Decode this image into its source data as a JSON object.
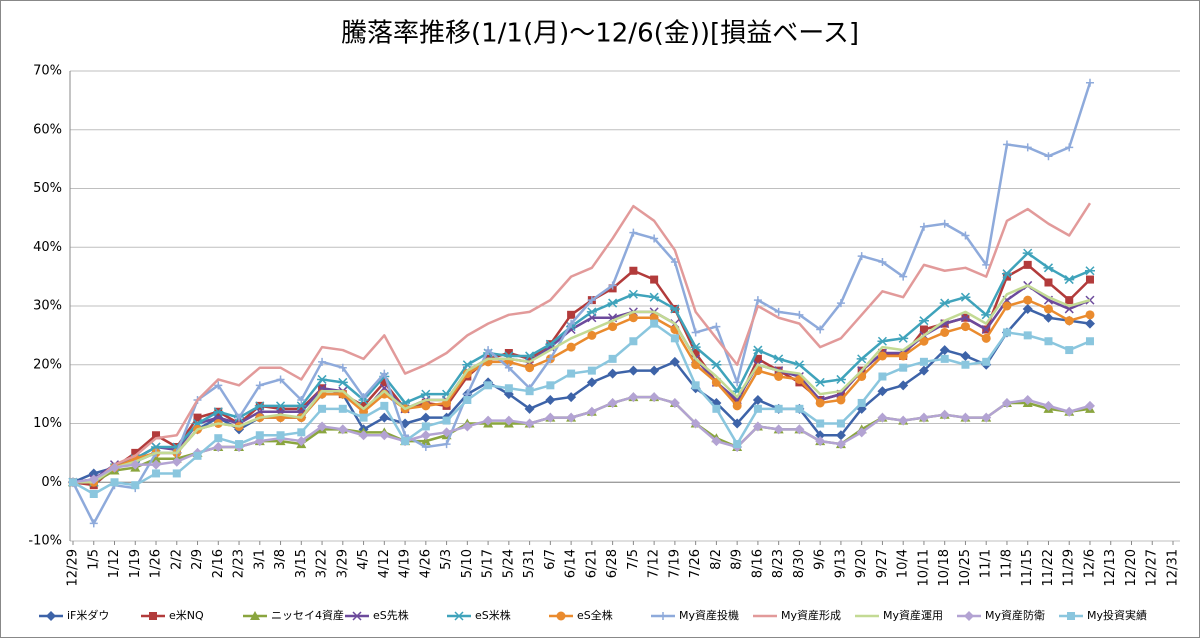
{
  "chart_data": {
    "type": "line",
    "title": "騰落率推移(1/1(月)～12/6(金))[損益ベース]",
    "categories": [
      "12/29",
      "1/5",
      "1/12",
      "1/19",
      "1/26",
      "2/2",
      "2/9",
      "2/16",
      "2/23",
      "3/1",
      "3/8",
      "3/15",
      "3/22",
      "3/29",
      "4/5",
      "4/12",
      "4/19",
      "4/26",
      "5/3",
      "5/10",
      "5/17",
      "5/24",
      "5/31",
      "6/7",
      "6/14",
      "6/21",
      "6/28",
      "7/5",
      "7/12",
      "7/19",
      "7/26",
      "8/2",
      "8/9",
      "8/16",
      "8/23",
      "8/30",
      "9/6",
      "9/13",
      "9/20",
      "9/27",
      "10/4",
      "10/11",
      "10/18",
      "10/25",
      "11/1",
      "11/8",
      "11/15",
      "11/22",
      "11/29",
      "12/6",
      "12/13",
      "12/20",
      "12/27",
      "12/31"
    ],
    "ylim": [
      -10,
      70
    ],
    "yticks": [
      {
        "value": -10,
        "label": "-10%"
      },
      {
        "value": 0,
        "label": "0%"
      },
      {
        "value": 10,
        "label": "10%"
      },
      {
        "value": 20,
        "label": "20%"
      },
      {
        "value": 30,
        "label": "30%"
      },
      {
        "value": 40,
        "label": "40%"
      },
      {
        "value": 50,
        "label": "50%"
      },
      {
        "value": 60,
        "label": "60%"
      },
      {
        "value": 70,
        "label": "70%"
      }
    ],
    "grid": true,
    "legend": "bottom",
    "series": [
      {
        "name": "iF米ダウ",
        "color": "#3d63a8",
        "marker": "diamond",
        "values": [
          0,
          1.5,
          2.5,
          3.5,
          5,
          5,
          9,
          11,
          9,
          11,
          11,
          11,
          15,
          15,
          9,
          11,
          10,
          11,
          11,
          15,
          17,
          15,
          12.5,
          14,
          14.5,
          17,
          18.5,
          19,
          19,
          20.5,
          16,
          13.5,
          10,
          14,
          12.5,
          12.5,
          8,
          8,
          12.5,
          15.5,
          16.5,
          19,
          22.5,
          21.5,
          20,
          25.5,
          29.5,
          28,
          27.5,
          27,
          null,
          null,
          null,
          null
        ]
      },
      {
        "name": "e米NQ",
        "color": "#b23b3b",
        "marker": "square",
        "values": [
          0,
          -0.5,
          2.5,
          5,
          8,
          6,
          11,
          12,
          10,
          13,
          12.5,
          12.5,
          16,
          15,
          13,
          17,
          12.5,
          13.5,
          13,
          18,
          21,
          22,
          21,
          23.5,
          28.5,
          31,
          33,
          36,
          34.5,
          29.5,
          22,
          17,
          13.5,
          21,
          19,
          17,
          14,
          15,
          19,
          22,
          21.5,
          26,
          27,
          28,
          26,
          35,
          37,
          34,
          31,
          34.5,
          null,
          null,
          null,
          null
        ]
      },
      {
        "name": "ニッセイ4資産",
        "color": "#8aa53e",
        "marker": "triangle",
        "values": [
          0,
          0,
          2,
          2.5,
          4,
          4,
          5,
          6,
          6,
          7,
          7,
          6.5,
          9,
          9,
          8.5,
          8.5,
          7,
          7,
          8,
          10,
          10,
          10,
          10,
          11,
          11,
          12,
          13.5,
          14.5,
          14.5,
          13.5,
          10,
          7.5,
          6,
          9.5,
          9,
          9,
          7,
          6.5,
          9,
          11,
          10.5,
          11,
          11.5,
          11,
          11,
          13.5,
          13.5,
          12.5,
          12,
          12.5,
          null,
          null,
          null,
          null
        ]
      },
      {
        "name": "eS先株",
        "color": "#6c4a9c",
        "marker": "x",
        "values": [
          0,
          0.5,
          3,
          4,
          6,
          5.5,
          10,
          11,
          10,
          12,
          12,
          12,
          16,
          15.5,
          12,
          16,
          12.5,
          14,
          14,
          19,
          21,
          21,
          20.5,
          23,
          26,
          28,
          28,
          29,
          29,
          27,
          21,
          17,
          14,
          20,
          19,
          18,
          14,
          15,
          19,
          22,
          22,
          25,
          27,
          28,
          26,
          31,
          33.5,
          31,
          29.5,
          31,
          null,
          null,
          null,
          null
        ]
      },
      {
        "name": "eS米株",
        "color": "#3fa3bb",
        "marker": "star",
        "values": [
          0,
          0,
          2.5,
          4,
          6,
          6,
          10,
          12,
          11,
          13,
          13,
          13,
          17.5,
          17,
          14,
          18,
          13.5,
          15,
          15,
          20,
          22,
          21.5,
          21.5,
          23.5,
          26.5,
          29,
          30.5,
          32,
          31.5,
          29.5,
          23,
          20,
          15.5,
          22.5,
          21,
          20,
          17,
          17.5,
          21,
          24,
          24.5,
          27.5,
          30.5,
          31.5,
          28.5,
          35.5,
          39,
          36.5,
          34.5,
          36,
          null,
          null,
          null,
          null
        ]
      },
      {
        "name": "eS全株",
        "color": "#ea8b2e",
        "marker": "circle",
        "values": [
          0,
          0,
          2.5,
          4,
          5,
          5,
          9,
          10,
          9.5,
          11,
          11,
          11,
          15,
          15,
          12,
          15,
          12.5,
          13,
          13.5,
          18.5,
          20.5,
          20.5,
          19.5,
          21,
          23,
          25,
          26.5,
          28,
          28,
          26,
          20,
          17,
          13,
          19,
          18,
          17.5,
          13.5,
          14,
          18,
          21.5,
          21.5,
          24,
          25.5,
          26.5,
          24.5,
          30,
          31,
          29.5,
          27.5,
          28.5,
          null,
          null,
          null,
          null
        ]
      },
      {
        "name": "My資産投機",
        "color": "#8eaadb",
        "marker": "plus",
        "values": [
          0,
          -7,
          -0.5,
          -1,
          5,
          5,
          14,
          16.5,
          11,
          16.5,
          17.5,
          14,
          20.5,
          19.5,
          14.5,
          18.5,
          8,
          6,
          6.5,
          15,
          22.5,
          19.5,
          16,
          21,
          27,
          31,
          33.5,
          42.5,
          41.5,
          37.5,
          25.5,
          26.5,
          17,
          31,
          29,
          28.5,
          26,
          30.5,
          38.5,
          37.5,
          35,
          43.5,
          44,
          42,
          37,
          57.5,
          57,
          55.5,
          57,
          68,
          null,
          null,
          null,
          null
        ]
      },
      {
        "name": "My資産形成",
        "color": "#e29a9a",
        "marker": "none",
        "values": [
          0,
          0,
          3,
          4.5,
          7.5,
          8,
          14,
          17.5,
          16.5,
          19.5,
          19.5,
          17.5,
          23,
          22.5,
          21,
          25,
          18.5,
          20,
          22,
          25,
          27,
          28.5,
          29,
          31,
          35,
          36.5,
          41.5,
          47,
          44.5,
          39.5,
          29,
          24.5,
          20,
          30,
          28,
          27,
          23,
          24.5,
          28.5,
          32.5,
          31.5,
          37,
          36,
          36.5,
          35,
          44.5,
          46.5,
          44,
          42,
          47.5,
          null,
          null,
          null,
          null
        ]
      },
      {
        "name": "My資産運用",
        "color": "#c3da94",
        "marker": "none",
        "values": [
          0,
          0,
          2.5,
          3.5,
          5,
          5,
          9,
          10,
          9.5,
          11,
          11.5,
          11,
          15.5,
          15.5,
          12.5,
          15.5,
          12.5,
          14,
          14,
          19,
          21,
          21,
          20.5,
          22.5,
          24.5,
          26,
          27.5,
          29,
          29,
          27,
          21,
          18,
          14.5,
          20,
          19,
          18.5,
          15,
          15.5,
          19,
          23,
          22.5,
          25,
          27.5,
          29,
          27,
          32,
          33.5,
          31.5,
          30,
          31,
          null,
          null,
          null,
          null
        ]
      },
      {
        "name": "My資産防衛",
        "color": "#b3a3d3",
        "marker": "diamond",
        "values": [
          0,
          0.5,
          2.5,
          3,
          3,
          3.5,
          5,
          6,
          6,
          7,
          7.5,
          7,
          9.5,
          9,
          8,
          8,
          7,
          8,
          8.5,
          9.5,
          10.5,
          10.5,
          10,
          11,
          11,
          12,
          13.5,
          14.5,
          14.5,
          13.5,
          10,
          7,
          6,
          9.5,
          9,
          9,
          7,
          6.5,
          8.5,
          11,
          10.5,
          11,
          11.5,
          11,
          11,
          13.5,
          14,
          13,
          12,
          13,
          null,
          null,
          null,
          null
        ]
      },
      {
        "name": "My投資実績",
        "color": "#8ac6de",
        "marker": "square",
        "values": [
          0,
          -2,
          0,
          -0.5,
          1.5,
          1.5,
          4.5,
          7.5,
          6.5,
          8,
          8,
          8.5,
          12.5,
          12.5,
          11,
          13,
          7,
          9.5,
          10.5,
          14,
          16.5,
          16,
          15.5,
          16.5,
          18.5,
          19,
          21,
          24,
          27,
          24.5,
          16.5,
          12.5,
          6.5,
          12.5,
          12.5,
          12.5,
          10,
          10,
          13.5,
          18,
          19.5,
          20.5,
          21,
          20,
          20.5,
          25.5,
          25,
          24,
          22.5,
          24,
          null,
          null,
          null,
          null
        ]
      }
    ]
  }
}
